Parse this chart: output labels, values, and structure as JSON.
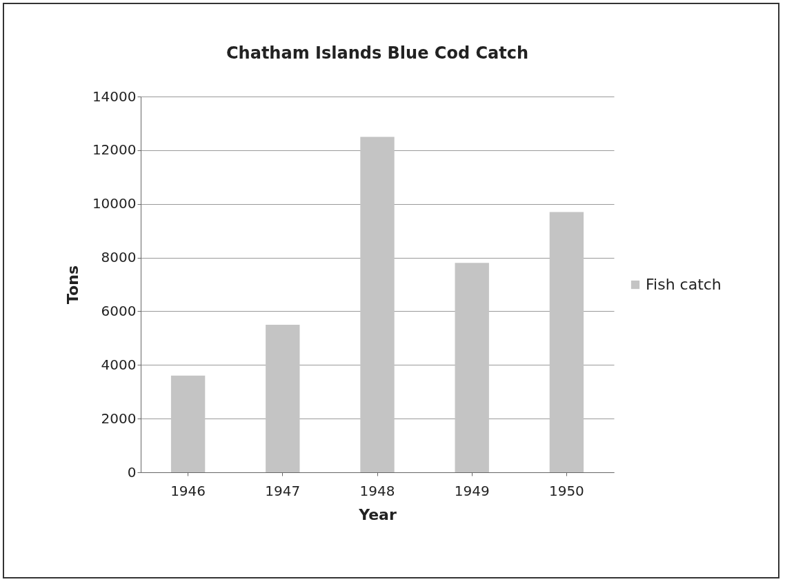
{
  "chart_data": {
    "type": "bar",
    "title": "Chatham Islands Blue Cod Catch",
    "xlabel": "Year",
    "ylabel": "Tons",
    "categories": [
      "1946",
      "1947",
      "1948",
      "1949",
      "1950"
    ],
    "series": [
      {
        "name": "Fish catch",
        "color": "#c4c4c4",
        "values": [
          3600,
          5500,
          12500,
          7800,
          9700
        ]
      }
    ],
    "ylim": [
      0,
      14000
    ],
    "yticks": [
      0,
      2000,
      4000,
      6000,
      8000,
      10000,
      12000,
      14000
    ],
    "grid": "y",
    "legend": "right"
  }
}
